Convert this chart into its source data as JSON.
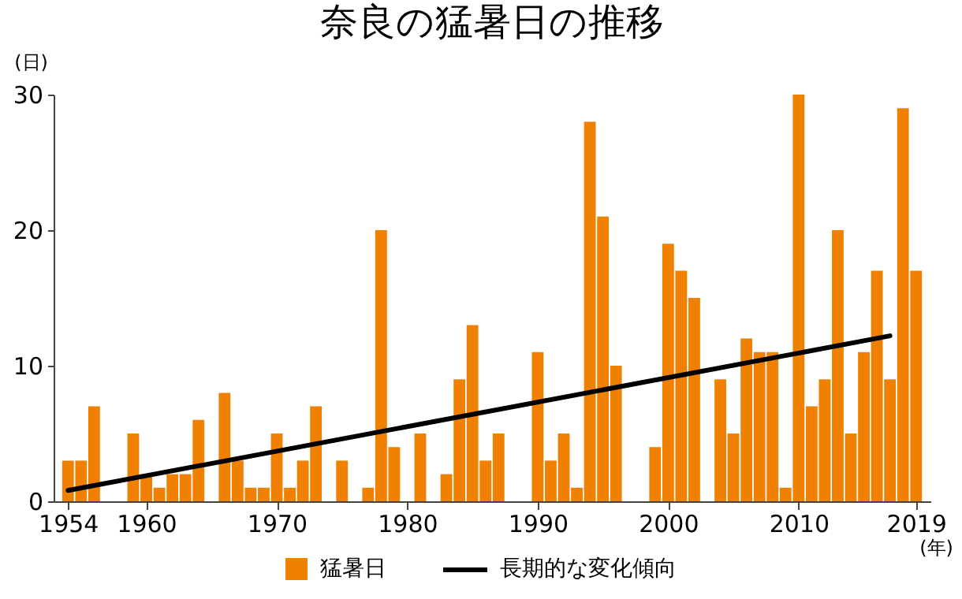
{
  "chart_data": {
    "type": "bar",
    "title": "奈良の猛暑日の推移",
    "ylabel": "(日)",
    "xlabel": "(年)",
    "x": [
      1954,
      1955,
      1956,
      1957,
      1958,
      1959,
      1960,
      1961,
      1962,
      1963,
      1964,
      1965,
      1966,
      1967,
      1968,
      1969,
      1970,
      1971,
      1972,
      1973,
      1974,
      1975,
      1976,
      1977,
      1978,
      1979,
      1980,
      1981,
      1982,
      1983,
      1984,
      1985,
      1986,
      1987,
      1988,
      1989,
      1990,
      1991,
      1992,
      1993,
      1994,
      1995,
      1996,
      1997,
      1998,
      1999,
      2000,
      2001,
      2002,
      2003,
      2004,
      2005,
      2006,
      2007,
      2008,
      2009,
      2010,
      2011,
      2012,
      2013,
      2014,
      2015,
      2016,
      2017,
      2018,
      2019
    ],
    "series": [
      {
        "name": "猛暑日",
        "color": "#f08000",
        "values": [
          3,
          3,
          7,
          0,
          0,
          5,
          2,
          1,
          2,
          2,
          6,
          0,
          8,
          3,
          1,
          1,
          5,
          1,
          3,
          7,
          0,
          3,
          0,
          1,
          20,
          4,
          0,
          5,
          0,
          2,
          9,
          13,
          3,
          5,
          0,
          0,
          11,
          3,
          5,
          1,
          28,
          21,
          10,
          0,
          0,
          4,
          19,
          17,
          15,
          0,
          9,
          5,
          12,
          11,
          11,
          1,
          30,
          7,
          9,
          20,
          5,
          11,
          17,
          9,
          29,
          17
        ]
      },
      {
        "name": "長期的な変化傾向",
        "type": "line",
        "color": "#000000",
        "x": [
          1954,
          2017
        ],
        "values": [
          0.8,
          12.2
        ]
      }
    ],
    "xlim": [
      1953.5,
      2019.5
    ],
    "xticks": [
      1954,
      1960,
      1970,
      1980,
      1990,
      2000,
      2010,
      2019
    ],
    "ylim": [
      0,
      30
    ],
    "yticks": [
      0,
      10,
      20,
      30
    ],
    "grid": false,
    "legend": "bottom"
  }
}
